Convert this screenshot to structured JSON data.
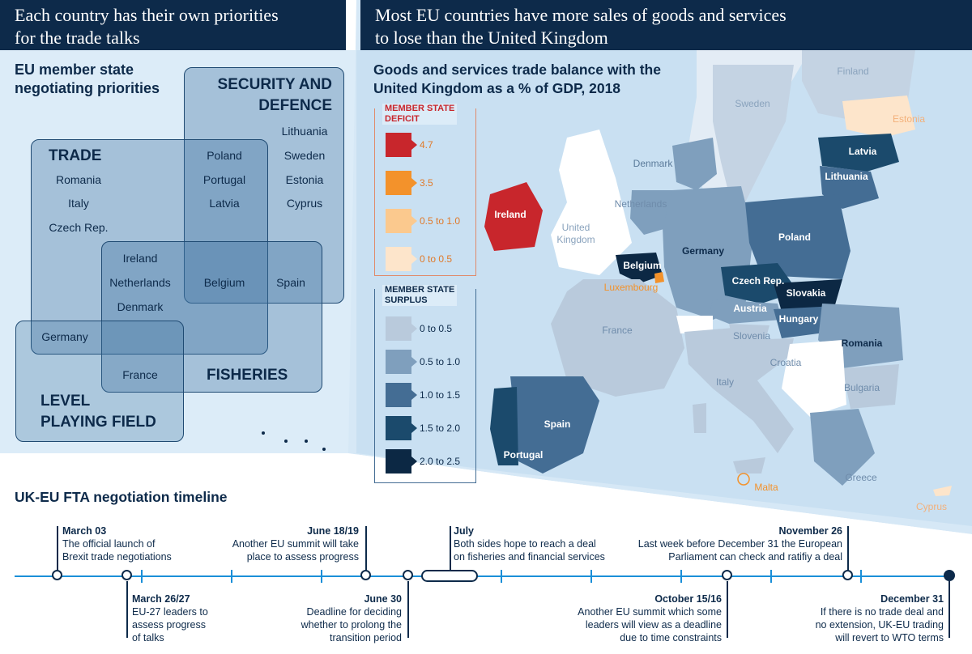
{
  "header_left": {
    "line1": "Each country has their own priorities",
    "line2": "for the trade talks"
  },
  "header_right": {
    "line1": "Most EU countries have more sales of goods and services",
    "line2": "to lose than the United Kingdom"
  },
  "venn": {
    "title_line1": "EU member state",
    "title_line2": "negotiating priorities",
    "sets": {
      "security": {
        "line1": "SECURITY AND",
        "line2": "DEFENCE"
      },
      "trade": "TRADE",
      "fisheries": "FISHERIES",
      "level": {
        "line1": "LEVEL",
        "line2": "PLAYING FIELD"
      }
    },
    "countries": {
      "lithuania": "Lithuania",
      "sweden": "Sweden",
      "estonia": "Estonia",
      "cyprus": "Cyprus",
      "poland": "Poland",
      "portugal": "Portugal",
      "latvia": "Latvia",
      "romania": "Romania",
      "italy": "Italy",
      "czech": "Czech Rep.",
      "ireland": "Ireland",
      "netherlands": "Netherlands",
      "denmark": "Denmark",
      "belgium": "Belgium",
      "spain": "Spain",
      "germany": "Germany",
      "france": "France"
    }
  },
  "map": {
    "title_line1": "Goods and services trade balance with the",
    "title_line2": "United Kingdom as a % of GDP, 2018",
    "legend": {
      "deficit_title_line1": "MEMBER STATE",
      "deficit_title_line2": "DEFICIT",
      "deficit": [
        {
          "label": "4.7",
          "color": "#c8262c"
        },
        {
          "label": "3.5",
          "color": "#f3922b"
        },
        {
          "label": "0.5 to 1.0",
          "color": "#fbc98e"
        },
        {
          "label": "0 to 0.5",
          "color": "#fde5cb"
        }
      ],
      "surplus_title_line1": "MEMBER STATE",
      "surplus_title_line2": "SURPLUS",
      "surplus": [
        {
          "label": "0 to 0.5",
          "color": "#b9cadc"
        },
        {
          "label": "0.5 to 1.0",
          "color": "#7f9fbd"
        },
        {
          "label": "1.0 to 1.5",
          "color": "#446d94"
        },
        {
          "label": "1.5 to 2.0",
          "color": "#1b4a6c"
        },
        {
          "label": "2.0 to 2.5",
          "color": "#0c2844"
        }
      ]
    },
    "labels": {
      "finland": "Finland",
      "sweden": "Sweden",
      "estonia": "Estonia",
      "latvia": "Latvia",
      "lithuania": "Lithuania",
      "denmark": "Denmark",
      "netherlands": "Netherlands",
      "ireland": "Ireland",
      "uk_line1": "United",
      "uk_line2": "Kingdom",
      "belgium": "Belgium",
      "luxembourg": "Luxembourg",
      "germany": "Germany",
      "poland": "Poland",
      "czech": "Czech Rep.",
      "slovakia": "Slovakia",
      "austria": "Austria",
      "hungary": "Hungary",
      "slovenia": "Slovenia",
      "croatia": "Croatia",
      "romania": "Romania",
      "bulgaria": "Bulgaria",
      "france": "France",
      "italy": "Italy",
      "spain": "Spain",
      "portugal": "Portugal",
      "greece": "Greece",
      "malta": "Malta",
      "cyprus": "Cyprus"
    }
  },
  "timeline": {
    "title": "UK-EU FTA negotiation timeline",
    "events_above": [
      {
        "date": "March 03",
        "line1": "The official launch of",
        "line2": "Brexit trade negotiations"
      },
      {
        "date": "June 18/19",
        "line1": "Another EU summit will take",
        "line2": "place to assess progress"
      },
      {
        "date": "July",
        "line1": "Both sides hope to reach a deal",
        "line2": "on fisheries and financial services"
      },
      {
        "date": "November 26",
        "line1": "Last week before December 31 the European",
        "line2": "Parliament can check and ratifiy a deal"
      }
    ],
    "events_below": [
      {
        "date": "March 26/27",
        "line1": "EU-27 leaders to",
        "line2": "assess progress",
        "line3": "of talks"
      },
      {
        "date": "June 30",
        "line1": "Deadline for deciding",
        "line2": "whether to prolong the",
        "line3": "transition period"
      },
      {
        "date": "October 15/16",
        "line1": "Another EU summit which some",
        "line2": "leaders will view as a deadline",
        "line3": "due to time constraints"
      },
      {
        "date": "December 31",
        "line1": "If there is no trade deal and",
        "line2": "no extension, UK-EU trading",
        "line3": "will revert to WTO terms"
      }
    ]
  }
}
